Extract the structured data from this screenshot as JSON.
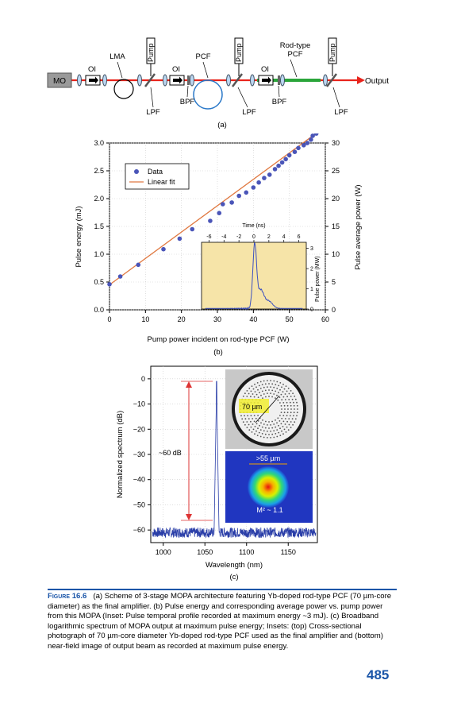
{
  "panel_a": {
    "labels": {
      "mo": "MO",
      "oi": "OI",
      "lma": "LMA",
      "pump": "Pump",
      "pcf": "PCF",
      "rod_type_line1": "Rod-type",
      "rod_type_line2": "PCF",
      "lpf": "LPF",
      "bpf": "BPF",
      "output": "Output"
    },
    "panel_label": "(a)",
    "colors": {
      "beam": "#e8241c",
      "rod": "#2aa53a",
      "mo_box": "#9a9a9a"
    }
  },
  "panel_b": {
    "panel_label": "(b)",
    "inset_bg": "#f6e4a8",
    "legend": {
      "data": "Data",
      "fit": "Linear fit"
    },
    "inset": {
      "xlabel": "Time (ns)",
      "ylabel": "Pulse power (MW)",
      "xticks": [
        "-6",
        "-4",
        "-2",
        "0",
        "2",
        "4",
        "6"
      ],
      "yticks": [
        "0",
        "1",
        "2",
        "3"
      ]
    }
  },
  "panel_c": {
    "panel_label": "(c)",
    "annotation": "~60 dB",
    "inset_top_label": "70 µm",
    "inset_bottom_label": ">55 µm",
    "inset_m2_label": "M² ~ 1.1"
  },
  "chart_data": [
    {
      "type": "scatter",
      "xlabel": "Pump power incident on rod-type PCF (W)",
      "ylabel": "Pulse energy (mJ)",
      "y2label": "Pulse average power (W)",
      "xlim": [
        0,
        60
      ],
      "ylim": [
        0,
        3.0
      ],
      "y2lim": [
        0,
        30
      ],
      "xticks": [
        "0",
        "10",
        "20",
        "30",
        "40",
        "50",
        "60"
      ],
      "yticks": [
        "0.0",
        "0.5",
        "1.0",
        "1.5",
        "2.0",
        "2.5",
        "3.0"
      ],
      "y2ticks": [
        "0",
        "5",
        "10",
        "15",
        "20",
        "25",
        "30"
      ],
      "series": [
        {
          "name": "Data",
          "x": [
            0,
            3,
            8,
            15,
            19.5,
            23,
            28,
            30.5,
            31.5,
            34,
            36,
            38,
            40,
            41.5,
            43,
            44.5,
            46,
            47,
            48,
            49,
            50,
            51.5,
            52.5,
            54,
            55,
            56,
            56.5,
            57.5
          ],
          "y": [
            0.46,
            0.6,
            0.81,
            1.09,
            1.28,
            1.45,
            1.6,
            1.74,
            1.9,
            1.93,
            2.05,
            2.11,
            2.2,
            2.29,
            2.37,
            2.43,
            2.53,
            2.59,
            2.65,
            2.71,
            2.78,
            2.84,
            2.91,
            2.96,
            3.0,
            3.06,
            3.13,
            3.17
          ]
        },
        {
          "name": "Linear fit",
          "x": [
            0,
            58
          ],
          "y": [
            0.45,
            3.2
          ]
        }
      ],
      "legend": "top-left"
    },
    {
      "type": "line",
      "xlabel": "Wavelength (nm)",
      "ylabel": "Normalized spectrum (dB)",
      "xlim": [
        985,
        1185
      ],
      "ylim": [
        -65,
        5
      ],
      "xticks": [
        "1000",
        "1050",
        "1100",
        "1150"
      ],
      "yticks": [
        "0",
        "−10",
        "−20",
        "−30",
        "−40",
        "−50",
        "−60"
      ],
      "peak_wavelength_nm": 1064,
      "noise_floor_db": -61,
      "annotation_span_db": [
        0,
        -60
      ]
    }
  ],
  "caption": {
    "label": "Figure 16.6",
    "text": "(a) Scheme of 3-stage MOPA architecture featuring Yb-doped rod-type PCF (70 µm-core diameter) as the final amplifier. (b) Pulse energy and corresponding average power vs. pump power from this MOPA (Inset: Pulse temporal profile recorded at maximum energy ~3 mJ). (c) Broadband logarithmic spectrum of MOPA output at maximum pulse energy; Insets: (top) Cross-sectional photograph of 70 µm-core diameter Yb-doped rod-type PCF used as the final amplifier and (bottom) near-field image of output beam as recorded at maximum pulse energy."
  },
  "page_number": "485"
}
